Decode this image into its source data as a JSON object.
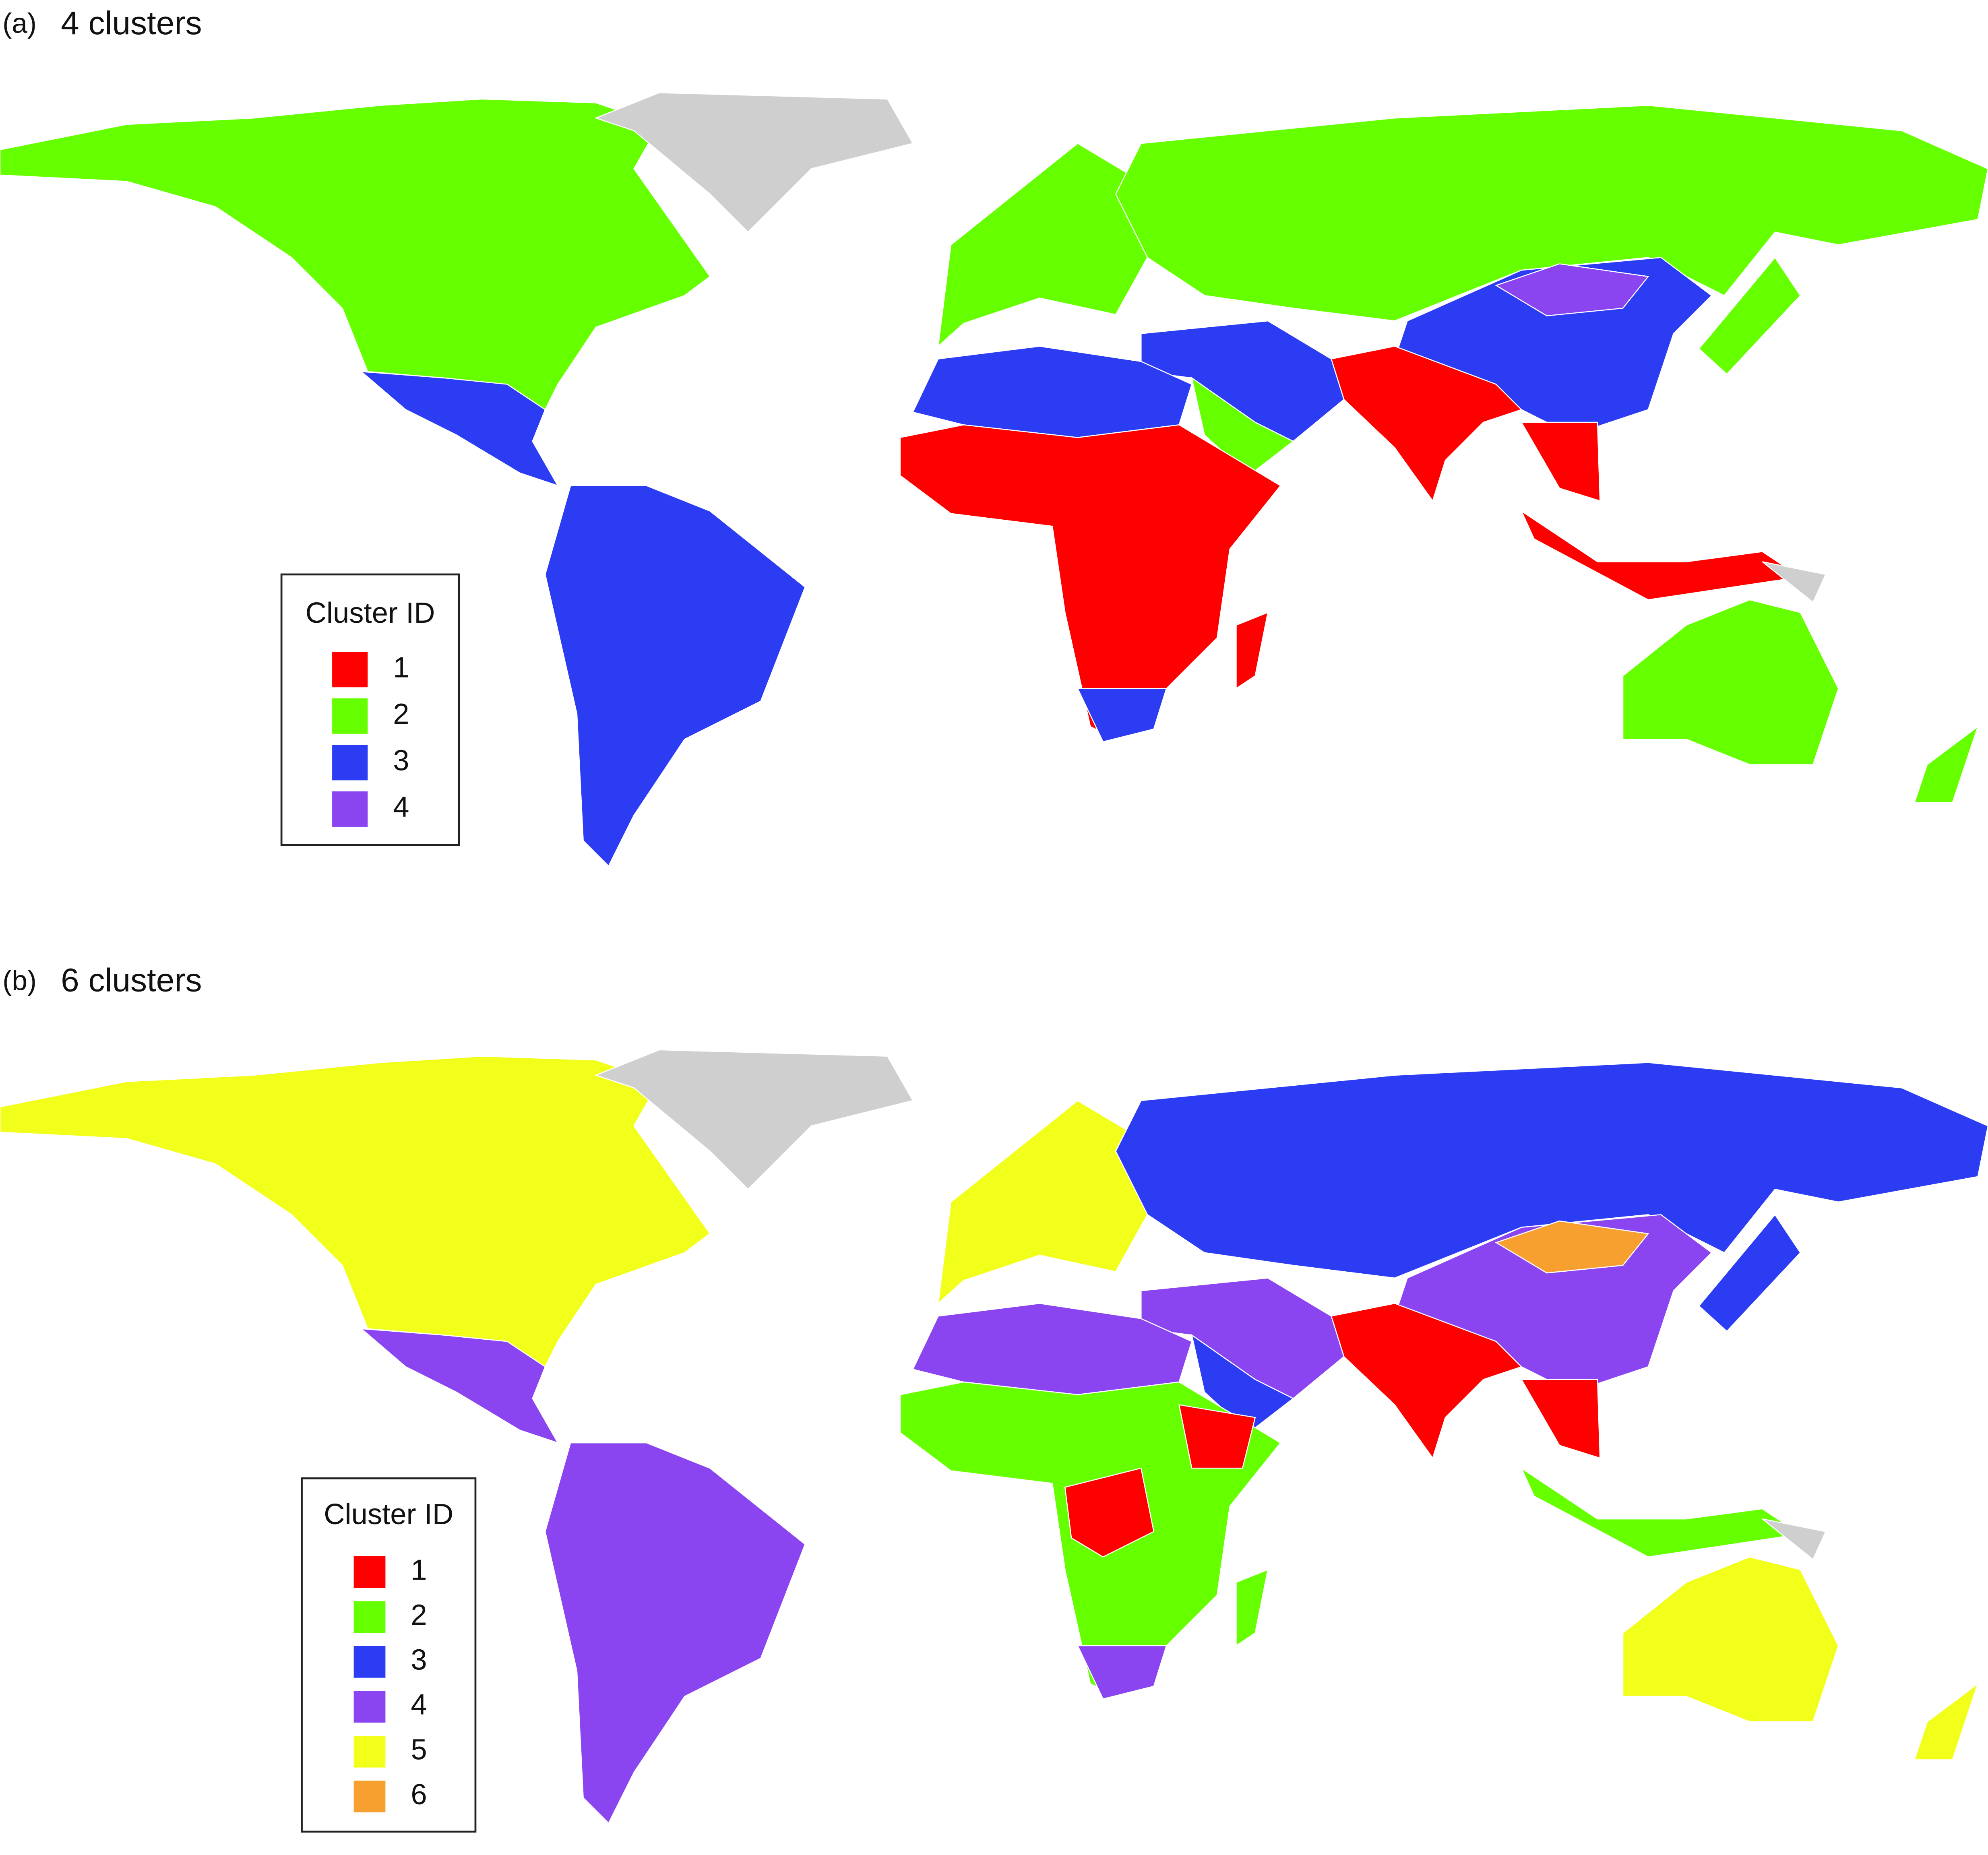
{
  "panels": [
    {
      "label": "(a)",
      "title": "4 clusters",
      "legend": {
        "title": "Cluster ID",
        "entries": [
          {
            "label": "1",
            "color": "#ff0000"
          },
          {
            "label": "2",
            "color": "#66ff00"
          },
          {
            "label": "3",
            "color": "#2b3cf2"
          },
          {
            "label": "4",
            "color": "#8a44f0"
          }
        ]
      }
    },
    {
      "label": "(b)",
      "title": "6 clusters",
      "legend": {
        "title": "Cluster ID",
        "entries": [
          {
            "label": "1",
            "color": "#ff0000"
          },
          {
            "label": "2",
            "color": "#66ff00"
          },
          {
            "label": "3",
            "color": "#2b3cf2"
          },
          {
            "label": "4",
            "color": "#8a44f0"
          },
          {
            "label": "5",
            "color": "#f2ff1a"
          },
          {
            "label": "6",
            "color": "#f7a030"
          }
        ]
      }
    }
  ]
}
